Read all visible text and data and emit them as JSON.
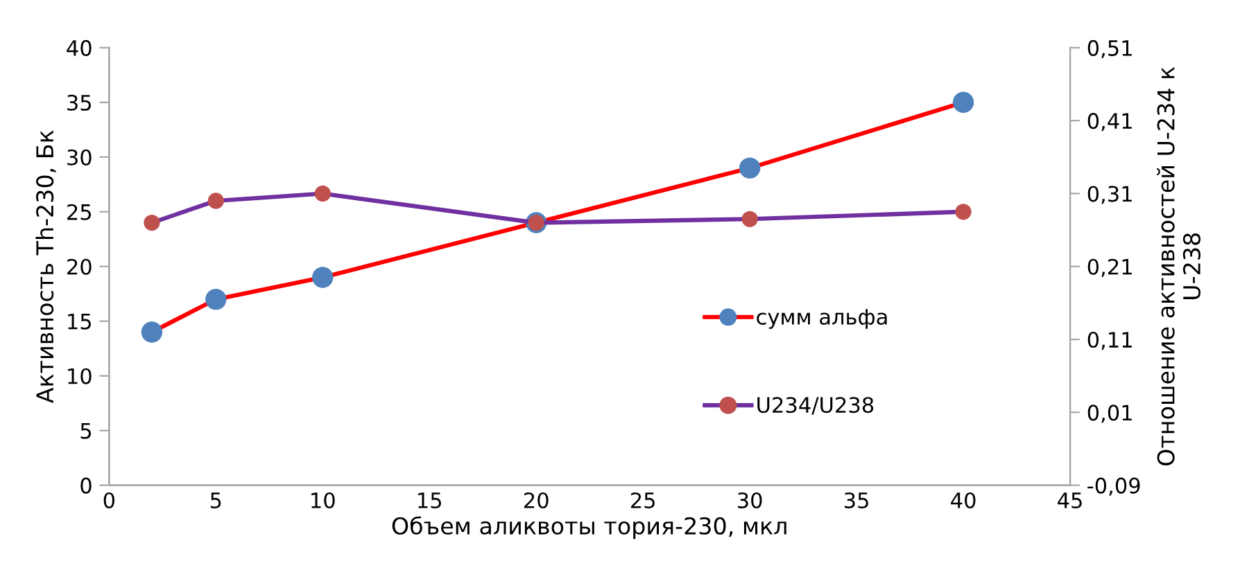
{
  "chart_data": {
    "type": "line",
    "xlabel": "Объем аликвоты тория-230, мкл",
    "ylabel": "Активность Th-230, Бк",
    "y2label": "Отношение активностей U-234 к\nU-238",
    "x": [
      2,
      5,
      10,
      20,
      30,
      40
    ],
    "series": [
      {
        "name": "сумм альфа",
        "color": "#ff0000",
        "colors": [
          "#4f81bd",
          "#4f81bd",
          "#4f81bd",
          "#4f81bd",
          "#4f81bd",
          "#4f81bd"
        ],
        "values": [
          14,
          17,
          19,
          24,
          29,
          35
        ]
      },
      {
        "name": "U234/U238",
        "color": "#7030a0",
        "colors": [
          "#c0504d",
          "#c0504d",
          "#c0504d",
          "#c0504d",
          "#c0504d",
          "#c0504d"
        ],
        "axis": "y2",
        "values": [
          0.27,
          0.3,
          0.31,
          0.27,
          0.275,
          0.285
        ]
      }
    ],
    "xlim": [
      0,
      45
    ],
    "xticks": [
      0,
      5,
      10,
      15,
      20,
      25,
      30,
      35,
      40,
      45
    ],
    "ylim": [
      0,
      40
    ],
    "yticks": [
      0,
      5,
      10,
      15,
      20,
      25,
      30,
      35,
      40
    ],
    "y2lim": [
      -0.09,
      0.51
    ],
    "y2ticks": [
      {
        "value": -0.09,
        "label": "-0,09"
      },
      {
        "value": 0.01,
        "label": "0,01"
      },
      {
        "value": 0.11,
        "label": "0,11"
      },
      {
        "value": 0.21,
        "label": "0,21"
      },
      {
        "value": 0.31,
        "label": "0,31"
      },
      {
        "value": 0.41,
        "label": "0,41"
      },
      {
        "value": 0.51,
        "label": "0,51"
      }
    ],
    "grid": false,
    "legend": "right",
    "marker": "circle",
    "line_style": "solid"
  }
}
